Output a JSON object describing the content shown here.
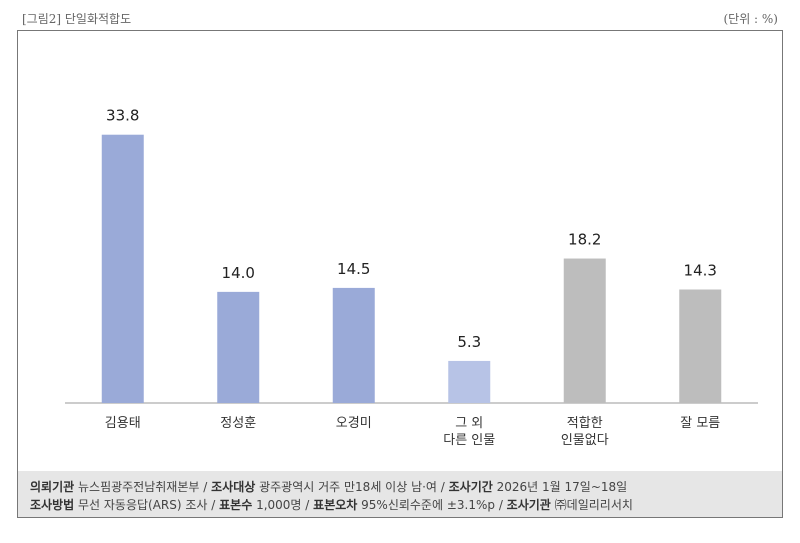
{
  "caption_left": "[그림2] 단일화적합도",
  "caption_right": "(단위 : %)",
  "chart_data": {
    "type": "bar",
    "categories": [
      "김용태",
      "정성훈",
      "오경미",
      "그 외\n다른 인물",
      "적합한\n인물없다",
      "잘 모름"
    ],
    "values": [
      33.8,
      14.0,
      14.5,
      5.3,
      18.2,
      14.3
    ],
    "value_labels": [
      "33.8",
      "14.0",
      "14.5",
      "5.3",
      "18.2",
      "14.3"
    ],
    "colors": [
      "#9aaad8",
      "#9aaad8",
      "#9aaad8",
      "#b7c3e6",
      "#bdbdbd",
      "#bdbdbd"
    ],
    "ylim": [
      0,
      36
    ],
    "grid": false,
    "legend": "none"
  },
  "footer": {
    "line1": [
      {
        "label": "의뢰기관",
        "value": "뉴스핌광주전남취재본부"
      },
      {
        "label": "조사대상",
        "value": "광주광역시 거주 만18세 이상 남·여"
      },
      {
        "label": "조사기간",
        "value": "2026년 1월 17일~18일"
      }
    ],
    "line2": [
      {
        "label": "조사방법",
        "value": "무선 자동응답(ARS) 조사"
      },
      {
        "label": "표본수",
        "value": "1,000명"
      },
      {
        "label": "표본오차",
        "value": "95%신뢰수준에 ±3.1%p"
      },
      {
        "label": "조사기관",
        "value": "㈜데일리리서치"
      }
    ],
    "separator": " / "
  }
}
